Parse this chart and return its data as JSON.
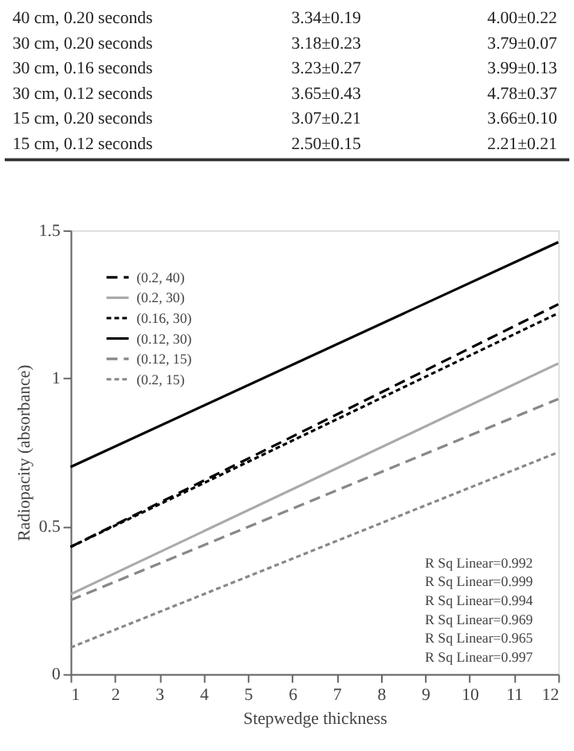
{
  "chart_data": {
    "type": "line",
    "xlabel": "Stepwedge thickness",
    "ylabel": "Radiopacity (absorbance)",
    "annotations": [
      "40 cm, 0.20 seconds  3.34±0.19  4.00±0.22",
      "30 cm, 0.20 seconds  3.18±0.23  3.79±0.07",
      "30 cm, 0.16 seconds  3.23±0.27  3.99±0.13",
      "30 cm, 0.12 seconds  3.65±0.43  4.78±0.37",
      "15 cm, 0.20 seconds  3.07±0.21  3.66±0.10",
      "15 cm, 0.12 seconds  2.50±0.15  2.21±0.21",
      "R Sq Linear=0.992",
      "R Sq Linear=0.999",
      "R Sq Linear=0.994",
      "R Sq Linear=0.969",
      "R Sq Linear=0.965",
      "R Sq Linear=0.997"
    ],
    "x": [
      1,
      12
    ],
    "series": [
      {
        "name": "(0.2, 40)",
        "color": "#000000",
        "line_style": "dashed",
        "values": [
          0.43,
          1.25
        ]
      },
      {
        "name": "(0.2, 30)",
        "color": "#aaaaaa",
        "line_style": "solid",
        "values": [
          0.27,
          1.05
        ]
      },
      {
        "name": "(0.16, 30)",
        "color": "#000000",
        "line_style": "dotted",
        "values": [
          0.43,
          1.22
        ]
      },
      {
        "name": "(0.12, 30)",
        "color": "#000000",
        "line_style": "solid",
        "values": [
          0.7,
          1.46
        ]
      },
      {
        "name": "(0.12, 15)",
        "color": "#888888",
        "line_style": "dashed",
        "values": [
          0.25,
          0.93
        ]
      },
      {
        "name": "(0.2, 15)",
        "color": "#888888",
        "line_style": "dotted",
        "values": [
          0.09,
          0.75
        ]
      }
    ],
    "xlim": [
      1,
      12
    ],
    "xticks": [
      1,
      2,
      3,
      4,
      5,
      6,
      7,
      8,
      9,
      10,
      11,
      12
    ],
    "ylim": [
      0,
      1.5
    ],
    "yticks": [
      0,
      0.5,
      1,
      1.5
    ],
    "grid": false,
    "legend": "top left"
  }
}
